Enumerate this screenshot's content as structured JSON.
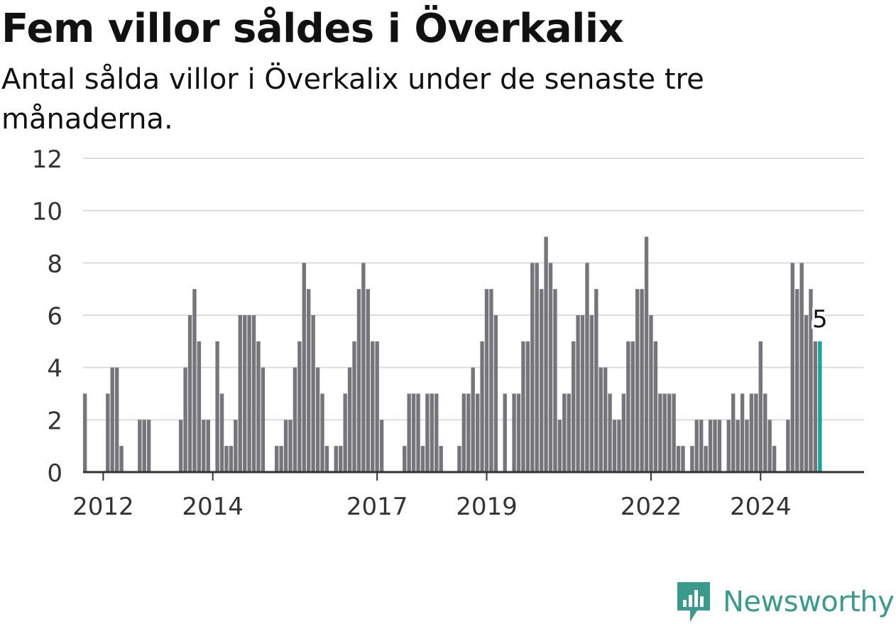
{
  "header": {
    "title": "Fem villor såldes i Överkalix",
    "subtitle": "Antal sålda villor i Överkalix under de senaste tre månaderna."
  },
  "brand": {
    "name": "Newsworthy"
  },
  "colors": {
    "bar": "#76757b",
    "highlight": "#16a59a",
    "grid": "#dcdcdc",
    "axis": "#333333",
    "brand": "#3a9b8c"
  },
  "chart_data": {
    "type": "bar",
    "title": "Fem villor såldes i Överkalix",
    "subtitle": "Antal sålda villor i Överkalix under de senaste tre månaderna.",
    "x_unit": "month",
    "start": "2011-01",
    "values": [
      0,
      0,
      0,
      0,
      0,
      0,
      0,
      0,
      3,
      0,
      0,
      0,
      0,
      3,
      4,
      4,
      1,
      0,
      0,
      0,
      2,
      2,
      2,
      0,
      0,
      0,
      0,
      0,
      0,
      2,
      4,
      6,
      7,
      5,
      2,
      2,
      0,
      5,
      3,
      1,
      1,
      2,
      6,
      6,
      6,
      6,
      5,
      4,
      0,
      0,
      1,
      1,
      2,
      2,
      4,
      5,
      8,
      7,
      6,
      4,
      3,
      1,
      0,
      1,
      1,
      3,
      4,
      5,
      7,
      8,
      7,
      5,
      5,
      2,
      0,
      0,
      0,
      0,
      1,
      3,
      3,
      3,
      1,
      3,
      3,
      3,
      1,
      0,
      0,
      0,
      1,
      3,
      3,
      4,
      3,
      5,
      7,
      7,
      6,
      0,
      3,
      0,
      3,
      3,
      5,
      5,
      8,
      8,
      7,
      9,
      8,
      7,
      2,
      3,
      3,
      5,
      6,
      6,
      8,
      6,
      7,
      4,
      4,
      3,
      2,
      2,
      3,
      5,
      5,
      7,
      7,
      9,
      6,
      5,
      3,
      3,
      3,
      3,
      1,
      1,
      0,
      1,
      2,
      2,
      1,
      2,
      2,
      2,
      0,
      2,
      3,
      2,
      3,
      2,
      3,
      3,
      5,
      3,
      2,
      1,
      0,
      0,
      2,
      8,
      7,
      8,
      6,
      7,
      5,
      5
    ],
    "highlight_last": true,
    "last_label": "5",
    "xticks": [
      "2012",
      "2014",
      "2017",
      "2019",
      "2022",
      "2024"
    ],
    "ylabel": "",
    "xlabel": "",
    "ylim": [
      0,
      12
    ],
    "yticks": [
      0,
      2,
      4,
      6,
      8,
      10,
      12
    ],
    "grid": true,
    "legend": "none"
  }
}
